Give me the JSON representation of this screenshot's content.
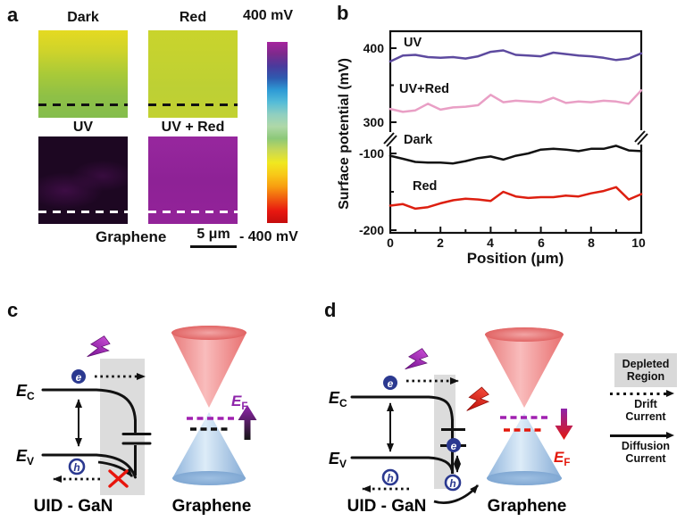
{
  "panel_a": {
    "letter": "a",
    "maps": [
      {
        "label": "Dark",
        "type": "gradient",
        "stops": [
          "#e5da21",
          "#cdd32b",
          "#a9ca38",
          "#8fc046",
          "#84bd4d"
        ],
        "dash": "#111111"
      },
      {
        "label": "Red",
        "type": "gradient",
        "stops": [
          "#c9d42c",
          "#c4d230",
          "#bdd034",
          "#c2d131"
        ],
        "dash": "#111111"
      },
      {
        "label": "UV",
        "type": "patchy",
        "base": "#1d0722",
        "patch": "#6d1678",
        "dash": "#ffffff"
      },
      {
        "label": "UV + Red",
        "type": "gradient",
        "stops": [
          "#97279e",
          "#8e2296",
          "#932399"
        ],
        "dash": "#ffffff"
      }
    ],
    "colorbar": {
      "top_label": "400 mV",
      "bottom_label": "- 400 mV",
      "stops": [
        "#a6239e",
        "#7c2a8c",
        "#4a3a9c",
        "#2e5bb0",
        "#2e9bd6",
        "#55bcd8",
        "#90cfc0",
        "#afd8a8",
        "#8cc878",
        "#c8d855",
        "#f0e820",
        "#f8c818",
        "#f89c10",
        "#f05a10",
        "#e81810",
        "#c40d0d"
      ]
    },
    "sample_label": "Graphene",
    "scalebar_label": "5 μm"
  },
  "panel_b": {
    "letter": "b"
  },
  "chart_data": {
    "type": "line",
    "title": "",
    "xlabel": "Position (μm)",
    "ylabel": "Surface potential (mV)",
    "xlim": [
      0,
      10
    ],
    "x_ticks": [
      0,
      2,
      4,
      6,
      8,
      10
    ],
    "x_minor_ticks": [
      1,
      3,
      5,
      7,
      9
    ],
    "axis_break": {
      "between": [
        300,
        -100
      ]
    },
    "y_ticks_top": [
      400,
      300
    ],
    "y_minor_ticks_top": [
      350
    ],
    "y_ticks_bottom": [
      -100,
      -200
    ],
    "y_minor_ticks_bottom": [
      -150
    ],
    "x_step": 0.5,
    "grid": false,
    "series": [
      {
        "name": "UV",
        "color": "#5d4a9f",
        "segment": "top",
        "values": [
          382,
          390,
          391,
          388,
          387,
          388,
          386,
          389,
          395,
          397,
          391,
          390,
          389,
          394,
          392,
          390,
          389,
          387,
          384,
          386,
          393
        ]
      },
      {
        "name": "UV+Red",
        "color": "#e99fc5",
        "segment": "top",
        "values": [
          318,
          314,
          316,
          325,
          317,
          320,
          321,
          323,
          337,
          327,
          329,
          328,
          327,
          333,
          326,
          328,
          327,
          329,
          328,
          325,
          343
        ]
      },
      {
        "name": "Dark",
        "color": "#121212",
        "segment": "bottom",
        "values": [
          -103,
          -107,
          -111,
          -112,
          -112,
          -113,
          -110,
          -106,
          -104,
          -108,
          -103,
          -100,
          -95,
          -94,
          -95,
          -97,
          -94,
          -94,
          -90,
          -96,
          -97
        ]
      },
      {
        "name": "Red",
        "color": "#dd1f10",
        "segment": "bottom",
        "values": [
          -168,
          -166,
          -172,
          -170,
          -165,
          -161,
          -159,
          -160,
          -162,
          -150,
          -156,
          -158,
          -157,
          -157,
          -155,
          -156,
          -152,
          -149,
          -144,
          -160,
          -153
        ]
      }
    ]
  },
  "panel_c": {
    "letter": "c",
    "ec": {
      "sym": "E",
      "sub": "C"
    },
    "ev": {
      "sym": "E",
      "sub": "V"
    },
    "ef": {
      "sym": "E",
      "sub": "F"
    },
    "electron": "e",
    "hole": "h",
    "substrate": "UID - GaN",
    "overlayer": "Graphene"
  },
  "panel_d": {
    "letter": "d",
    "ec": {
      "sym": "E",
      "sub": "C"
    },
    "ev": {
      "sym": "E",
      "sub": "V"
    },
    "ef": {
      "sym": "E",
      "sub": "F"
    },
    "electron": "e",
    "hole": "h",
    "substrate": "UID - GaN",
    "overlayer": "Graphene"
  },
  "legend": {
    "depleted_line1": "Depleted",
    "depleted_line2": "Region",
    "drift_line1": "Drift",
    "drift_line2": "Current",
    "diffusion_line1": "Diffusion",
    "diffusion_line2": "Current"
  },
  "colors": {
    "uv_line": "#5d4a9f",
    "uvred_line": "#e99fc5",
    "dark_line": "#121212",
    "red_line": "#dd1f10",
    "purple_accent": "#8e24aa",
    "red_accent": "#e3180c",
    "carrier_blue": "#2b3990",
    "depleted_gray": "#d9d9d9"
  }
}
